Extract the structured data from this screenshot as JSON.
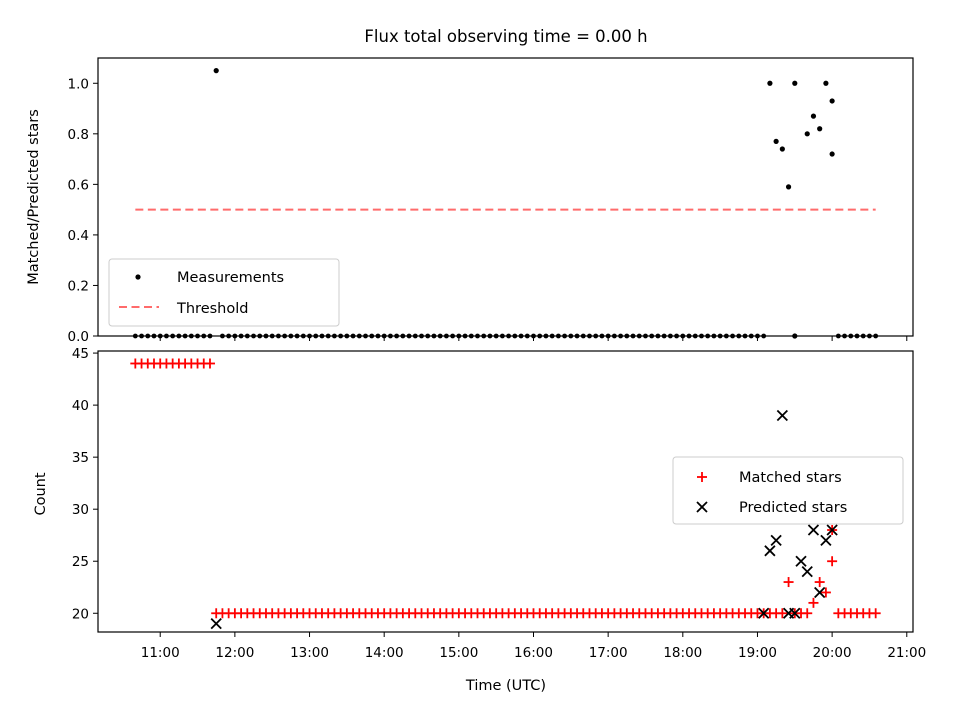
{
  "title": "Flux total observing time = 0.00 h",
  "colors": {
    "measure": "#000000",
    "threshold": "#ff6b6b",
    "matched": "#ff0000",
    "predicted": "#000000"
  },
  "chart_data": [
    {
      "type": "scatter",
      "ylabel": "Matched/Predicted stars",
      "ylim": [
        0,
        1.1
      ],
      "xlim": [
        "10:10",
        "21:05"
      ],
      "yticks": [
        {
          "v": 0.0,
          "t": "0.0"
        },
        {
          "v": 0.2,
          "t": "0.2"
        },
        {
          "v": 0.4,
          "t": "0.4"
        },
        {
          "v": 0.6,
          "t": "0.6"
        },
        {
          "v": 0.8,
          "t": "0.8"
        },
        {
          "v": 1.0,
          "t": "1.0"
        }
      ],
      "legend": {
        "position": "lower-left",
        "entries": [
          "Measurements",
          "Threshold"
        ]
      },
      "threshold": {
        "name": "Threshold",
        "x": [
          "10:40",
          "20:35"
        ],
        "y": 0.5
      },
      "zero_points": {
        "x_start": [
          "10:40",
          "11:50",
          "20:05"
        ],
        "x_end": [
          "11:40",
          "19:05",
          "20:35"
        ],
        "step_minutes": 5,
        "y": 0
      },
      "series": [
        {
          "name": "Measurements",
          "points": [
            [
              "11:45",
              1.05
            ],
            [
              "19:30",
              0.0
            ],
            [
              "19:10",
              1.0
            ],
            [
              "19:15",
              0.77
            ],
            [
              "19:20",
              0.74
            ],
            [
              "19:25",
              0.59
            ],
            [
              "19:30",
              1.0
            ],
            [
              "19:40",
              0.8
            ],
            [
              "19:45",
              0.87
            ],
            [
              "19:50",
              0.82
            ],
            [
              "19:55",
              1.0
            ],
            [
              "20:00",
              0.93
            ],
            [
              "20:00",
              0.72
            ]
          ]
        }
      ]
    },
    {
      "type": "scatter",
      "xlabel": "Time (UTC)",
      "ylabel": "Count",
      "ylim": [
        18.2,
        45.2
      ],
      "xlim": [
        "10:10",
        "21:05"
      ],
      "yticks": [
        {
          "v": 20,
          "t": "20"
        },
        {
          "v": 25,
          "t": "25"
        },
        {
          "v": 30,
          "t": "30"
        },
        {
          "v": 35,
          "t": "35"
        },
        {
          "v": 40,
          "t": "40"
        },
        {
          "v": 45,
          "t": "45"
        }
      ],
      "xticks": [
        "11:00",
        "12:00",
        "13:00",
        "14:00",
        "15:00",
        "16:00",
        "17:00",
        "18:00",
        "19:00",
        "20:00",
        "21:00"
      ],
      "legend": {
        "position": "center-right",
        "entries": [
          "Matched stars",
          "Predicted stars"
        ]
      },
      "series": [
        {
          "name": "Matched stars",
          "ranges": [
            {
              "x_start": "10:40",
              "x_end": "11:40",
              "step_minutes": 5,
              "y": 44
            },
            {
              "x_start": "11:45",
              "x_end": "19:05",
              "step_minutes": 5,
              "y": 20
            },
            {
              "x_start": "20:05",
              "x_end": "20:35",
              "step_minutes": 5,
              "y": 20
            }
          ],
          "points": [
            [
              "19:10",
              20
            ],
            [
              "19:15",
              20
            ],
            [
              "19:20",
              20
            ],
            [
              "19:25",
              23
            ],
            [
              "19:30",
              20
            ],
            [
              "19:35",
              20
            ],
            [
              "19:40",
              20
            ],
            [
              "19:45",
              21
            ],
            [
              "19:50",
              23
            ],
            [
              "19:55",
              22
            ],
            [
              "20:00",
              25
            ],
            [
              "20:00",
              28
            ]
          ]
        },
        {
          "name": "Predicted stars",
          "points": [
            [
              "11:45",
              19
            ],
            [
              "19:05",
              20
            ],
            [
              "19:10",
              26
            ],
            [
              "19:15",
              27
            ],
            [
              "19:20",
              39
            ],
            [
              "19:25",
              20
            ],
            [
              "19:30",
              20
            ],
            [
              "19:35",
              25
            ],
            [
              "19:40",
              24
            ],
            [
              "19:45",
              28
            ],
            [
              "19:50",
              22
            ],
            [
              "19:55",
              27
            ],
            [
              "20:00",
              28
            ]
          ]
        }
      ]
    }
  ]
}
